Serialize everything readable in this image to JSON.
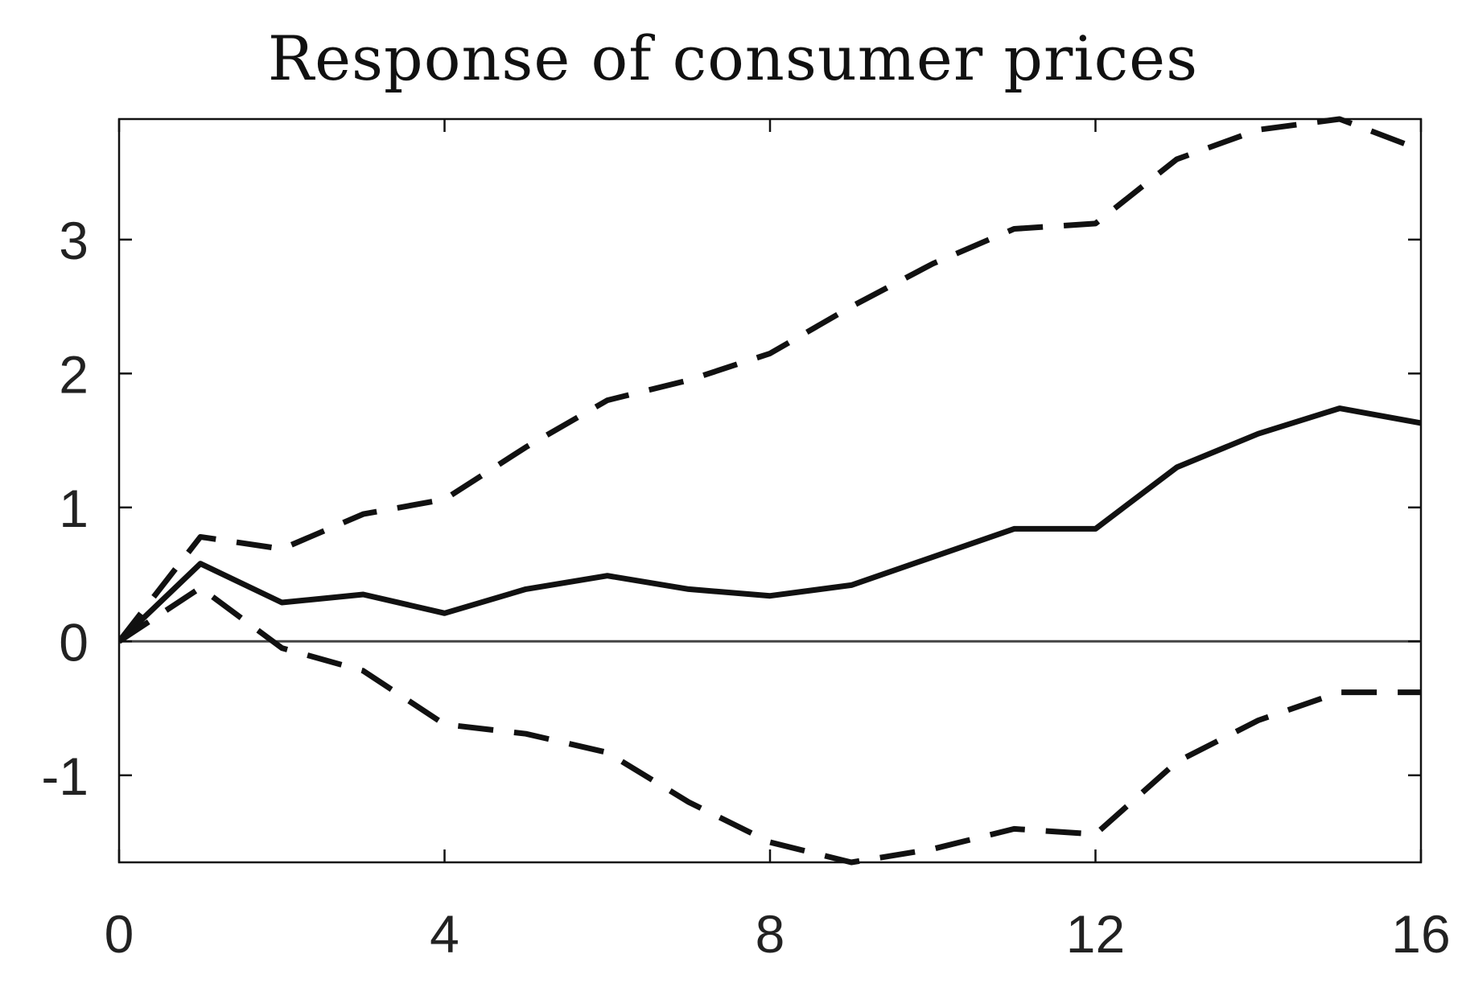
{
  "chart_data": {
    "type": "line",
    "title": "Response of consumer prices",
    "xlabel": "",
    "ylabel": "",
    "xlim": [
      0,
      16
    ],
    "ylim": [
      -1.65,
      3.9
    ],
    "x_ticks": [
      0,
      4,
      8,
      12,
      16
    ],
    "x_tick_labels": [
      "0",
      "4",
      "8",
      "12",
      "16"
    ],
    "y_ticks": [
      -1,
      0,
      1,
      2,
      3
    ],
    "y_tick_labels": [
      "-1",
      "0",
      "1",
      "2",
      "3"
    ],
    "grid": false,
    "legend": "none",
    "zero_line": true,
    "x": [
      0,
      1,
      2,
      3,
      4,
      5,
      6,
      7,
      8,
      9,
      10,
      11,
      12,
      13,
      14,
      15,
      16
    ],
    "series": [
      {
        "style": "solid",
        "color": "#111111",
        "values": [
          0,
          0.58,
          0.29,
          0.35,
          0.21,
          0.39,
          0.49,
          0.39,
          0.34,
          0.42,
          0.63,
          0.84,
          0.84,
          1.3,
          1.55,
          1.74,
          1.63
        ]
      },
      {
        "style": "dashed",
        "color": "#111111",
        "values": [
          0,
          0.78,
          0.69,
          0.95,
          1.06,
          1.45,
          1.8,
          1.95,
          2.15,
          2.5,
          2.82,
          3.08,
          3.12,
          3.6,
          3.82,
          3.9,
          3.67
        ]
      },
      {
        "style": "dashed",
        "color": "#111111",
        "values": [
          0,
          0.4,
          -0.05,
          -0.22,
          -0.62,
          -0.69,
          -0.83,
          -1.2,
          -1.5,
          -1.65,
          -1.55,
          -1.4,
          -1.44,
          -0.9,
          -0.59,
          -0.38,
          -0.38
        ]
      }
    ]
  }
}
